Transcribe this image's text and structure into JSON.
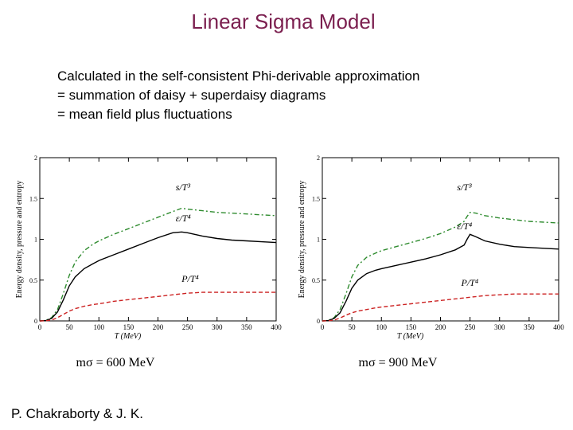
{
  "page": {
    "title": "Linear Sigma Model",
    "description": [
      "Calculated in the self-consistent Phi-derivable approximation",
      "= summation of daisy + superdaisy diagrams",
      "= mean field plus fluctuations"
    ],
    "credit": "P. Chakraborty & J. K."
  },
  "chart_data": [
    {
      "type": "line",
      "caption": "mσ = 600 MeV",
      "xlabel": "T (MeV)",
      "ylabel": "Energy density, pressure and entropy",
      "xlim": [
        0,
        400
      ],
      "ylim": [
        0,
        2
      ],
      "xticks": [
        0,
        50,
        100,
        150,
        200,
        250,
        300,
        350,
        400
      ],
      "yticks": [
        0,
        0.5,
        1,
        1.5,
        2
      ],
      "grid": false,
      "series": [
        {
          "name": "s/T³",
          "color": "#2e8b2e",
          "dash": "dashdot",
          "x": [
            0,
            10,
            20,
            30,
            40,
            50,
            60,
            75,
            90,
            100,
            125,
            150,
            175,
            200,
            225,
            240,
            250,
            275,
            300,
            325,
            350,
            375,
            400
          ],
          "y": [
            0,
            0.005,
            0.04,
            0.14,
            0.34,
            0.56,
            0.72,
            0.86,
            0.94,
            0.98,
            1.06,
            1.13,
            1.2,
            1.27,
            1.34,
            1.38,
            1.37,
            1.35,
            1.33,
            1.32,
            1.31,
            1.3,
            1.29
          ]
        },
        {
          "name": "ε/T⁴",
          "color": "#000000",
          "dash": "solid",
          "x": [
            0,
            10,
            20,
            30,
            40,
            50,
            60,
            75,
            90,
            100,
            125,
            150,
            175,
            200,
            225,
            240,
            250,
            275,
            300,
            325,
            350,
            375,
            400
          ],
          "y": [
            0,
            0.004,
            0.03,
            0.11,
            0.26,
            0.43,
            0.54,
            0.64,
            0.7,
            0.74,
            0.81,
            0.88,
            0.95,
            1.02,
            1.08,
            1.09,
            1.08,
            1.04,
            1.01,
            0.99,
            0.98,
            0.97,
            0.96
          ]
        },
        {
          "name": "P/T⁴",
          "color": "#cc2222",
          "dash": "dashed",
          "x": [
            0,
            10,
            20,
            30,
            40,
            50,
            60,
            75,
            90,
            100,
            125,
            150,
            175,
            200,
            225,
            250,
            275,
            300,
            325,
            350,
            375,
            400
          ],
          "y": [
            0,
            0.001,
            0.01,
            0.04,
            0.08,
            0.12,
            0.15,
            0.18,
            0.2,
            0.21,
            0.24,
            0.26,
            0.28,
            0.3,
            0.32,
            0.34,
            0.35,
            0.35,
            0.35,
            0.35,
            0.35,
            0.35
          ]
        }
      ]
    },
    {
      "type": "line",
      "caption": "mσ = 900 MeV",
      "xlabel": "T (MeV)",
      "ylabel": "Energy density, pressure and entropy",
      "xlim": [
        0,
        400
      ],
      "ylim": [
        0,
        2
      ],
      "xticks": [
        0,
        50,
        100,
        150,
        200,
        250,
        300,
        350,
        400
      ],
      "yticks": [
        0,
        0.5,
        1,
        1.5,
        2
      ],
      "grid": false,
      "series": [
        {
          "name": "s/T³",
          "color": "#2e8b2e",
          "dash": "dashdot",
          "x": [
            0,
            10,
            20,
            30,
            40,
            50,
            60,
            75,
            90,
            100,
            125,
            150,
            175,
            200,
            225,
            240,
            245,
            250,
            260,
            275,
            300,
            325,
            350,
            375,
            400
          ],
          "y": [
            0,
            0.005,
            0.04,
            0.14,
            0.33,
            0.54,
            0.68,
            0.78,
            0.83,
            0.86,
            0.91,
            0.96,
            1.01,
            1.07,
            1.15,
            1.22,
            1.28,
            1.33,
            1.32,
            1.29,
            1.26,
            1.24,
            1.22,
            1.21,
            1.2
          ]
        },
        {
          "name": "ε/T⁴",
          "color": "#000000",
          "dash": "solid",
          "x": [
            0,
            10,
            20,
            30,
            40,
            50,
            60,
            75,
            90,
            100,
            125,
            150,
            175,
            200,
            225,
            240,
            245,
            250,
            260,
            275,
            300,
            325,
            350,
            375,
            400
          ],
          "y": [
            0,
            0.004,
            0.03,
            0.1,
            0.24,
            0.4,
            0.5,
            0.58,
            0.62,
            0.64,
            0.68,
            0.72,
            0.76,
            0.81,
            0.87,
            0.93,
            1.0,
            1.06,
            1.03,
            0.98,
            0.94,
            0.91,
            0.9,
            0.89,
            0.88
          ]
        },
        {
          "name": "P/T⁴",
          "color": "#cc2222",
          "dash": "dashed",
          "x": [
            0,
            10,
            20,
            30,
            40,
            50,
            60,
            75,
            90,
            100,
            125,
            150,
            175,
            200,
            225,
            250,
            275,
            300,
            325,
            350,
            375,
            400
          ],
          "y": [
            0,
            0.001,
            0.01,
            0.035,
            0.07,
            0.1,
            0.12,
            0.14,
            0.16,
            0.17,
            0.19,
            0.21,
            0.23,
            0.25,
            0.27,
            0.29,
            0.31,
            0.32,
            0.33,
            0.33,
            0.33,
            0.33
          ]
        }
      ]
    }
  ]
}
